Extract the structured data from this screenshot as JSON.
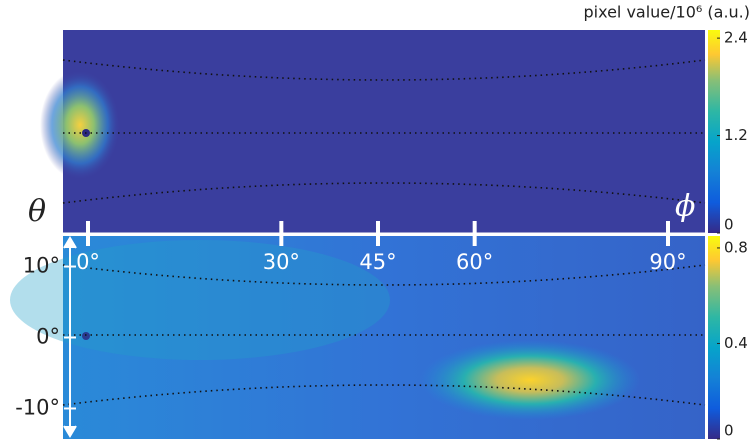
{
  "colorbar_label": "pixel value/10⁶ (a.u.)",
  "theta_symbol": "θ",
  "phi_symbol": "ϕ",
  "phi_axis": {
    "xlim": [
      0,
      90
    ],
    "ticks": [
      {
        "value": 0,
        "label": "0°"
      },
      {
        "value": 30,
        "label": "30°"
      },
      {
        "value": 45,
        "label": "45°"
      },
      {
        "value": 60,
        "label": "60°"
      },
      {
        "value": 90,
        "label": "90°"
      }
    ]
  },
  "theta_axis": {
    "ylim": [
      14.3,
      -14.3
    ],
    "ticks": [
      {
        "value": 10,
        "label": "10°"
      },
      {
        "value": 0,
        "label": "0°"
      },
      {
        "value": -10,
        "label": "-10°"
      }
    ]
  },
  "top_colorbar": {
    "clim": [
      0,
      2.5
    ],
    "ticks": [
      0,
      1.2,
      2.4
    ]
  },
  "bottom_colorbar": {
    "clim": [
      0,
      0.85
    ],
    "ticks": [
      0,
      0.4,
      0.8
    ]
  }
}
